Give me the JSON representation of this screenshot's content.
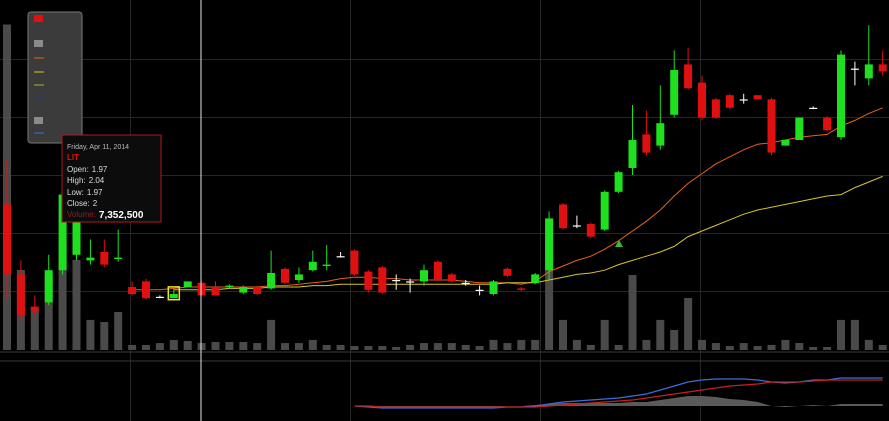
{
  "chart_data": {
    "type": "candlestick",
    "ylim": [
      1.6,
      4.1
    ],
    "up_color": "#1fe01f",
    "down_color": "#e01010",
    "flat_color": "#ffffff",
    "candles": [
      [
        2.64,
        2.96,
        1.96,
        2.14
      ],
      [
        2.14,
        2.24,
        1.81,
        1.85
      ],
      [
        1.91,
        1.99,
        1.85,
        1.88
      ],
      [
        1.94,
        2.28,
        1.92,
        2.17
      ],
      [
        2.17,
        2.78,
        2.14,
        2.71
      ],
      [
        2.28,
        2.78,
        2.24,
        2.71
      ],
      [
        2.24,
        2.39,
        2.21,
        2.26
      ],
      [
        2.3,
        2.39,
        2.19,
        2.21
      ],
      [
        2.25,
        2.46,
        2.23,
        2.26
      ],
      [
        2.05,
        2.09,
        1.99,
        2.0
      ],
      [
        2.09,
        2.11,
        1.96,
        1.97
      ],
      [
        1.98,
        1.99,
        1.97,
        1.98
      ],
      [
        1.97,
        2.04,
        1.97,
        2
      ],
      [
        2.05,
        2.09,
        2.05,
        2.09
      ],
      [
        2.08,
        2.09,
        1.99,
        1.99
      ],
      [
        2.05,
        2.09,
        1.99,
        1.99
      ],
      [
        2.05,
        2.07,
        2.04,
        2.06
      ],
      [
        2.01,
        2.06,
        2.0,
        2.05
      ],
      [
        2.05,
        2.06,
        1.99,
        2.0
      ],
      [
        2.04,
        2.31,
        2.03,
        2.15
      ],
      [
        2.18,
        2.19,
        2.07,
        2.08
      ],
      [
        2.1,
        2.19,
        2.08,
        2.14
      ],
      [
        2.17,
        2.31,
        2.16,
        2.23
      ],
      [
        2.2,
        2.35,
        2.17,
        2.21
      ],
      [
        2.27,
        2.3,
        2.26,
        2.27
      ],
      [
        2.31,
        2.32,
        2.13,
        2.14
      ],
      [
        2.16,
        2.17,
        2.01,
        2.03
      ],
      [
        2.19,
        2.2,
        2.0,
        2.01
      ],
      [
        2.1,
        2.14,
        2.03,
        2.1
      ],
      [
        2.09,
        2.11,
        2.01,
        2.09
      ],
      [
        2.09,
        2.21,
        2.06,
        2.17
      ],
      [
        2.23,
        2.24,
        2.09,
        2.1
      ],
      [
        2.14,
        2.15,
        2.08,
        2.09
      ],
      [
        2.08,
        2.1,
        2.06,
        2.08
      ],
      [
        2.03,
        2.06,
        1.99,
        2.03
      ],
      [
        2.0,
        2.1,
        1.99,
        2.09
      ],
      [
        2.18,
        2.19,
        2.12,
        2.13
      ],
      [
        2.04,
        2.05,
        2.02,
        2.03
      ],
      [
        2.08,
        2.15,
        2.07,
        2.14
      ],
      [
        2.17,
        2.59,
        2.1,
        2.54
      ],
      [
        2.64,
        2.65,
        2.46,
        2.47
      ],
      [
        2.49,
        2.56,
        2.47,
        2.49
      ],
      [
        2.5,
        2.51,
        2.4,
        2.41
      ],
      [
        2.46,
        2.74,
        2.45,
        2.73
      ],
      [
        2.73,
        2.88,
        2.72,
        2.87
      ],
      [
        2.9,
        3.35,
        2.85,
        3.1
      ],
      [
        3.14,
        3.31,
        2.99,
        3.01
      ],
      [
        3.06,
        3.49,
        3.03,
        3.22
      ],
      [
        3.28,
        3.74,
        3.26,
        3.6
      ],
      [
        3.64,
        3.76,
        3.46,
        3.47
      ],
      [
        3.51,
        3.56,
        3.24,
        3.26
      ],
      [
        3.39,
        3.4,
        3.25,
        3.26
      ],
      [
        3.42,
        3.43,
        3.32,
        3.33
      ],
      [
        3.39,
        3.43,
        3.36,
        3.39
      ],
      [
        3.42,
        3.42,
        3.39,
        3.39
      ],
      [
        3.39,
        3.4,
        2.99,
        3.01
      ],
      [
        3.06,
        3.1,
        3.06,
        3.1
      ],
      [
        3.1,
        3.26,
        3.1,
        3.26
      ],
      [
        3.33,
        3.34,
        3.32,
        3.33
      ],
      [
        3.26,
        3.27,
        3.16,
        3.17
      ],
      [
        3.12,
        3.74,
        3.1,
        3.71
      ],
      [
        3.61,
        3.66,
        3.49,
        3.61
      ],
      [
        3.54,
        3.92,
        3.49,
        3.64
      ],
      [
        3.64,
        3.74,
        3.56,
        3.59
      ]
    ],
    "volume": {
      "color": "#4a4a4a",
      "ylim": [
        0,
        257000000
      ],
      "values": [
        239000000,
        58800000,
        29400000,
        55100000,
        80900000,
        66200000,
        22100000,
        20600000,
        27900000,
        3700000,
        3700000,
        5100000,
        7352500,
        6600000,
        5100000,
        5900000,
        5900000,
        5900000,
        5100000,
        22100000,
        5100000,
        5100000,
        7400000,
        3700000,
        3700000,
        2900000,
        2900000,
        2900000,
        2200000,
        3700000,
        5100000,
        5100000,
        5100000,
        3700000,
        2900000,
        7400000,
        5100000,
        7400000,
        7400000,
        80900000,
        22100000,
        7400000,
        3700000,
        22100000,
        3700000,
        55100000,
        7400000,
        22100000,
        14700000,
        38200000,
        7400000,
        5100000,
        2900000,
        5100000,
        2900000,
        3700000,
        7400000,
        5100000,
        2200000,
        2200000,
        22100000,
        22100000,
        7400000,
        3700000
      ]
    },
    "moving_averages": [
      {
        "color": "#e8601c",
        "values": [
          null,
          null,
          null,
          null,
          null,
          null,
          null,
          null,
          null,
          2.03,
          2.03,
          2.03,
          2.04,
          2.05,
          2.05,
          2.05,
          2.05,
          2.05,
          2.05,
          2.06,
          2.06,
          2.07,
          2.08,
          2.09,
          2.11,
          2.12,
          2.12,
          2.11,
          2.11,
          2.1,
          2.1,
          2.1,
          2.1,
          2.09,
          2.08,
          2.08,
          2.08,
          2.07,
          2.09,
          2.16,
          2.2,
          2.24,
          2.27,
          2.32,
          2.38,
          2.45,
          2.52,
          2.6,
          2.7,
          2.79,
          2.86,
          2.93,
          2.98,
          3.03,
          3.07,
          3.08,
          3.1,
          3.12,
          3.13,
          3.14,
          3.2,
          3.24,
          3.29,
          3.33
        ]
      },
      {
        "color": "#d8c42a",
        "values": [
          null,
          null,
          null,
          null,
          null,
          null,
          null,
          null,
          null,
          null,
          null,
          null,
          2.03,
          2.03,
          2.03,
          2.03,
          2.04,
          2.04,
          2.04,
          2.05,
          2.05,
          2.05,
          2.06,
          2.06,
          2.07,
          2.07,
          2.07,
          2.07,
          2.07,
          2.07,
          2.07,
          2.07,
          2.07,
          2.07,
          2.07,
          2.07,
          2.08,
          2.08,
          2.08,
          2.1,
          2.12,
          2.14,
          2.15,
          2.17,
          2.21,
          2.24,
          2.27,
          2.3,
          2.34,
          2.41,
          2.45,
          2.49,
          2.53,
          2.57,
          2.6,
          2.62,
          2.64,
          2.66,
          2.68,
          2.7,
          2.71,
          2.76,
          2.8,
          2.84
        ]
      }
    ],
    "macd": {
      "ylim": [
        -0.07,
        0.22
      ],
      "series": [
        {
          "color": "#3a6fd8",
          "values": [
            null,
            null,
            null,
            null,
            null,
            null,
            null,
            null,
            null,
            null,
            null,
            null,
            null,
            null,
            null,
            null,
            null,
            null,
            null,
            null,
            null,
            null,
            null,
            null,
            null,
            0,
            -0.005,
            -0.01,
            -0.01,
            -0.01,
            -0.01,
            -0.01,
            -0.01,
            -0.01,
            -0.01,
            -0.01,
            -0.005,
            -0.005,
            0,
            0.01,
            0.02,
            0.025,
            0.03,
            0.035,
            0.04,
            0.05,
            0.06,
            0.08,
            0.1,
            0.12,
            0.13,
            0.135,
            0.135,
            0.135,
            0.13,
            0.12,
            0.115,
            0.12,
            0.13,
            0.13,
            0.14,
            0.14,
            0.14,
            0.14
          ]
        },
        {
          "color": "#c82020",
          "values": [
            null,
            null,
            null,
            null,
            null,
            null,
            null,
            null,
            null,
            null,
            null,
            null,
            null,
            null,
            null,
            null,
            null,
            null,
            null,
            null,
            null,
            null,
            null,
            null,
            null,
            0,
            0,
            -0.005,
            -0.005,
            -0.005,
            -0.005,
            -0.005,
            -0.005,
            -0.005,
            -0.005,
            -0.005,
            -0.005,
            -0.005,
            -0.005,
            0,
            0.005,
            0.01,
            0.015,
            0.02,
            0.025,
            0.03,
            0.04,
            0.05,
            0.06,
            0.07,
            0.08,
            0.09,
            0.1,
            0.105,
            0.11,
            0.12,
            0.12,
            0.12,
            0.125,
            0.13,
            0.13,
            0.13,
            0.13,
            0.13
          ]
        }
      ],
      "histogram": {
        "color": "#5a5a5a",
        "values": [
          null,
          null,
          null,
          null,
          null,
          null,
          null,
          null,
          null,
          null,
          null,
          null,
          null,
          null,
          null,
          null,
          null,
          null,
          null,
          null,
          null,
          null,
          null,
          null,
          null,
          0,
          -0.005,
          -0.005,
          -0.005,
          -0.005,
          -0.005,
          -0.005,
          -0.005,
          -0.005,
          -0.005,
          -0.005,
          0,
          0,
          0.005,
          0.01,
          0.015,
          0.015,
          0.015,
          0.015,
          0.015,
          0.02,
          0.02,
          0.03,
          0.04,
          0.05,
          0.05,
          0.045,
          0.035,
          0.03,
          0.02,
          0,
          -0.005,
          0,
          0.005,
          0,
          0.01,
          0.01,
          0.01,
          0.01
        ]
      }
    },
    "tooltip": {
      "date": "Friday, Apr 11, 2014",
      "symbol": "LIT",
      "open": "Open:",
      "high": "High:",
      "low": "Low:",
      "close": "Close:",
      "volume": "Volume:",
      "volume_text": "7,352,500"
    }
  }
}
